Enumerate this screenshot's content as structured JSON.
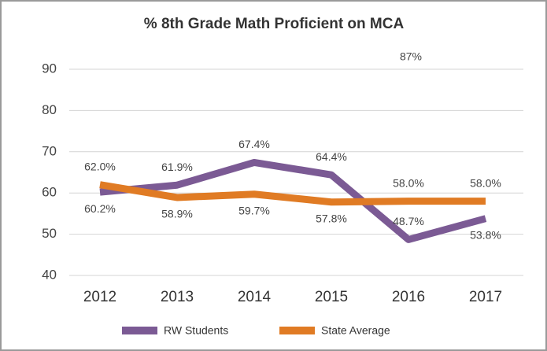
{
  "chart_data": {
    "type": "line",
    "title": "% 8th Grade Math Proficient on MCA",
    "categories": [
      "2012",
      "2013",
      "2014",
      "2015",
      "2016",
      "2017"
    ],
    "series": [
      {
        "name": "RW Students",
        "color": "#7b5a94",
        "values": [
          60.2,
          61.9,
          67.4,
          64.4,
          48.7,
          53.8
        ],
        "value_labels": [
          "60.2%",
          "61.9%",
          "67.4%",
          "64.4%",
          "48.7%",
          "53.8%"
        ]
      },
      {
        "name": "State Average",
        "color": "#e07b24",
        "values": [
          62.0,
          58.9,
          59.7,
          57.8,
          58.0,
          58.0
        ],
        "value_labels": [
          "62.0%",
          "58.9%",
          "59.7%",
          "57.8%",
          "58.0%",
          "58.0%"
        ]
      }
    ],
    "annotations": [
      "87%"
    ],
    "ylim": [
      40,
      90
    ],
    "yticks": [
      40,
      50,
      60,
      70,
      80,
      90
    ],
    "grid": true,
    "legend": "bottom"
  }
}
